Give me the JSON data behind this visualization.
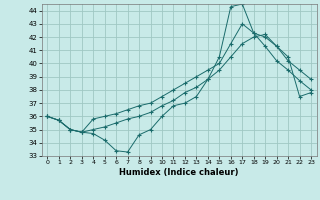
{
  "bg_color": "#c8eae8",
  "grid_color": "#a0c8c4",
  "line_color": "#1a6b6b",
  "xlabel": "Humidex (Indice chaleur)",
  "xlim": [
    -0.5,
    23.5
  ],
  "ylim": [
    33,
    44.5
  ],
  "yticks": [
    33,
    34,
    35,
    36,
    37,
    38,
    39,
    40,
    41,
    42,
    43,
    44
  ],
  "xticks": [
    0,
    1,
    2,
    3,
    4,
    5,
    6,
    7,
    8,
    9,
    10,
    11,
    12,
    13,
    14,
    15,
    16,
    17,
    18,
    19,
    20,
    21,
    22,
    23
  ],
  "lines": [
    [
      36.0,
      35.7,
      35.0,
      34.8,
      34.7,
      34.2,
      33.4,
      33.3,
      34.6,
      35.0,
      36.0,
      36.8,
      37.0,
      37.5,
      38.8,
      40.5,
      44.3,
      44.5,
      42.3,
      41.3,
      40.2,
      39.5,
      38.7,
      38.0
    ],
    [
      36.0,
      35.7,
      35.0,
      34.8,
      35.8,
      36.0,
      36.2,
      36.5,
      36.8,
      37.0,
      37.5,
      38.0,
      38.5,
      39.0,
      39.5,
      40.0,
      41.5,
      43.0,
      42.3,
      42.0,
      41.3,
      40.2,
      39.5,
      38.8
    ],
    [
      36.0,
      35.7,
      35.0,
      34.8,
      35.0,
      35.2,
      35.5,
      35.8,
      36.0,
      36.3,
      36.8,
      37.2,
      37.8,
      38.2,
      38.8,
      39.5,
      40.5,
      41.5,
      42.0,
      42.2,
      41.3,
      40.5,
      37.5,
      37.8
    ]
  ]
}
